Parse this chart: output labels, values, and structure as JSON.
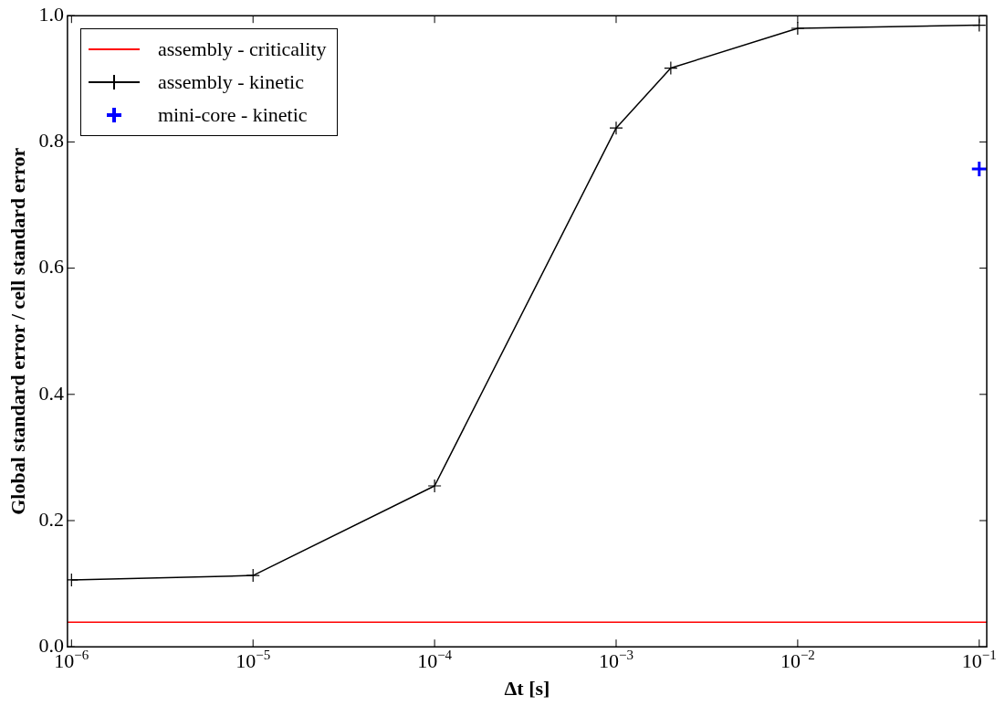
{
  "chart_data": {
    "type": "line",
    "xlabel": "Δt [s]",
    "ylabel": "Global standard error / cell standard error",
    "log": "x",
    "grid": false,
    "legend": "top left",
    "xlim": [
      9.5e-07,
      0.11
    ],
    "xticks": [
      {
        "value": 1e-06,
        "label": "10$^{−6}$"
      },
      {
        "value": 1e-05,
        "label": "10$^{−5}$"
      },
      {
        "value": 0.0001,
        "label": "10$^{−4}$"
      },
      {
        "value": 0.001,
        "label": "10$^{−3}$"
      },
      {
        "value": 0.01,
        "label": "10$^{−2}$"
      },
      {
        "value": 0.1,
        "label": "10$^{−1}$"
      }
    ],
    "ylim": [
      0,
      1
    ],
    "yticks": [
      {
        "value": 0,
        "label": "0.0"
      },
      {
        "value": 0.2,
        "label": "0.2"
      },
      {
        "value": 0.4,
        "label": "0.4"
      },
      {
        "value": 0.6,
        "label": "0.6"
      },
      {
        "value": 0.8,
        "label": "0.8"
      },
      {
        "value": 1,
        "label": "1.0"
      }
    ],
    "series": [
      {
        "name": "assembly - criticality",
        "color": "#ff0000",
        "marker": "none",
        "x": [
          9.5e-07,
          0.11
        ],
        "values": [
          0.039,
          0.039
        ]
      },
      {
        "name": "assembly - kinetic",
        "color": "#000000",
        "marker": "cross",
        "x": [
          1e-06,
          1e-05,
          0.0001,
          0.001,
          0.002,
          0.01,
          0.1
        ],
        "values": [
          0.106,
          0.113,
          0.255,
          0.822,
          0.917,
          0.98,
          0.985
        ]
      },
      {
        "name": "mini-core - kinetic",
        "type": "scatter",
        "color": "#0000ff",
        "marker": "cross",
        "x": [
          0.1
        ],
        "values": [
          0.757
        ]
      }
    ]
  }
}
